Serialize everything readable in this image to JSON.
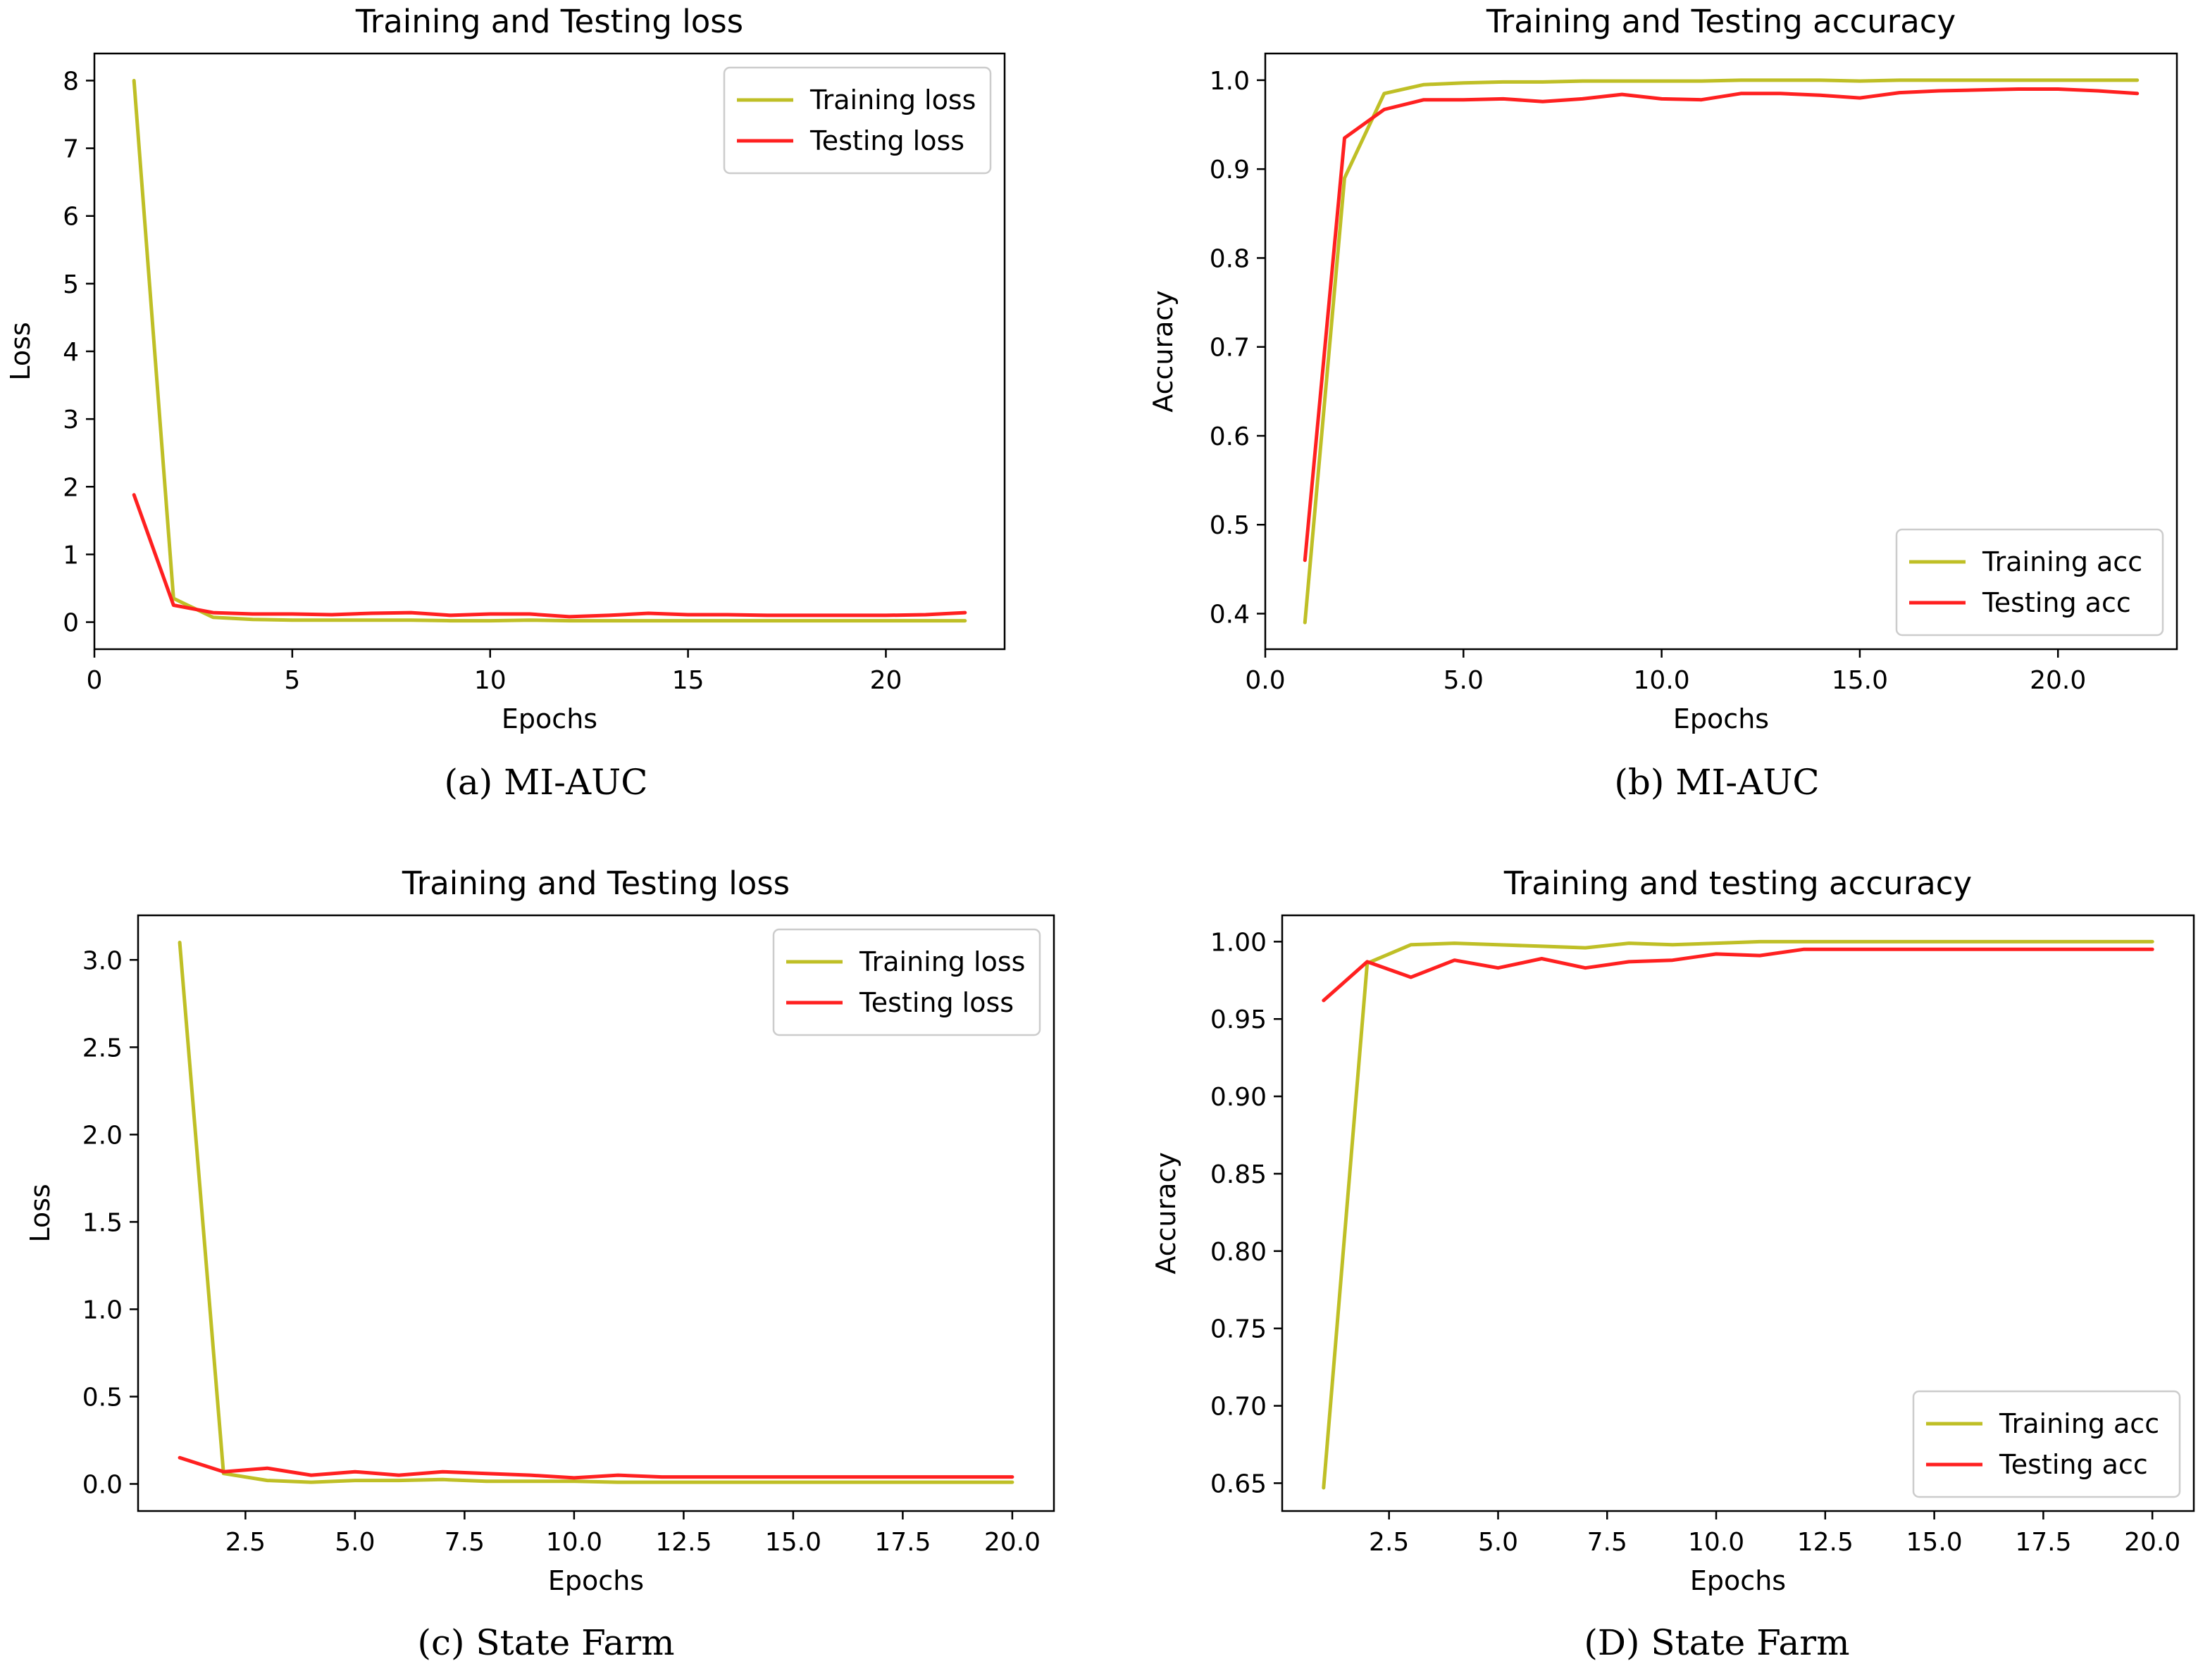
{
  "chart_data": [
    {
      "type": "line",
      "title": "Training and Testing loss",
      "xlabel": "Epochs",
      "ylabel": "Loss",
      "xlim": [
        0,
        23
      ],
      "ylim": [
        -0.4,
        8.4
      ],
      "xticks": [
        0,
        5,
        10,
        15,
        20
      ],
      "yticks": [
        0,
        1,
        2,
        3,
        4,
        5,
        6,
        7,
        8
      ],
      "tick_decimals": 0,
      "legend_position": "top-right",
      "caption": "(a) MI-AUC",
      "x": [
        1,
        2,
        3,
        4,
        5,
        6,
        7,
        8,
        9,
        10,
        11,
        12,
        13,
        14,
        15,
        16,
        17,
        18,
        19,
        20,
        21,
        22
      ],
      "series": [
        {
          "name": "Training loss",
          "color": "#bfbf26",
          "values": [
            8.0,
            0.35,
            0.07,
            0.04,
            0.03,
            0.03,
            0.03,
            0.03,
            0.02,
            0.02,
            0.03,
            0.02,
            0.02,
            0.02,
            0.02,
            0.02,
            0.02,
            0.02,
            0.02,
            0.02,
            0.02,
            0.02
          ]
        },
        {
          "name": "Testing loss",
          "color": "#ff2020",
          "values": [
            1.88,
            0.25,
            0.14,
            0.12,
            0.12,
            0.11,
            0.13,
            0.14,
            0.1,
            0.12,
            0.12,
            0.08,
            0.1,
            0.13,
            0.11,
            0.11,
            0.1,
            0.1,
            0.1,
            0.1,
            0.11,
            0.14
          ]
        }
      ]
    },
    {
      "type": "line",
      "title": "Training and Testing accuracy",
      "xlabel": "Epochs",
      "ylabel": "Accuracy",
      "xlim": [
        0,
        23
      ],
      "ylim": [
        0.36,
        1.03
      ],
      "xticks": [
        0,
        5,
        10,
        15,
        20
      ],
      "yticks": [
        0.4,
        0.5,
        0.6,
        0.7,
        0.8,
        0.9,
        1.0
      ],
      "tick_decimals": 1,
      "legend_position": "bottom-right",
      "caption": "(b) MI-AUC",
      "x": [
        1,
        2,
        3,
        4,
        5,
        6,
        7,
        8,
        9,
        10,
        11,
        12,
        13,
        14,
        15,
        16,
        17,
        18,
        19,
        20,
        21,
        22
      ],
      "series": [
        {
          "name": "Training acc",
          "color": "#bfbf26",
          "values": [
            0.39,
            0.89,
            0.985,
            0.995,
            0.997,
            0.998,
            0.998,
            0.999,
            0.999,
            0.999,
            0.999,
            1.0,
            1.0,
            1.0,
            0.999,
            1.0,
            1.0,
            1.0,
            1.0,
            1.0,
            1.0,
            1.0
          ]
        },
        {
          "name": "Testing acc",
          "color": "#ff2020",
          "values": [
            0.46,
            0.935,
            0.967,
            0.978,
            0.978,
            0.979,
            0.976,
            0.979,
            0.984,
            0.979,
            0.978,
            0.985,
            0.985,
            0.983,
            0.98,
            0.986,
            0.988,
            0.989,
            0.99,
            0.99,
            0.988,
            0.985
          ]
        }
      ]
    },
    {
      "type": "line",
      "title": "Training and Testing loss",
      "xlabel": "Epochs",
      "ylabel": "Loss",
      "xlim": [
        0.05,
        20.95
      ],
      "ylim": [
        -0.155,
        3.255
      ],
      "xticks": [
        2.5,
        5.0,
        7.5,
        10.0,
        12.5,
        15.0,
        17.5,
        20.0
      ],
      "yticks": [
        0.0,
        0.5,
        1.0,
        1.5,
        2.0,
        2.5,
        3.0
      ],
      "tick_decimals": 1,
      "legend_position": "top-right",
      "caption": "(c) State Farm",
      "x": [
        1,
        2,
        3,
        4,
        5,
        6,
        7,
        8,
        9,
        10,
        11,
        12,
        13,
        14,
        15,
        16,
        17,
        18,
        19,
        20
      ],
      "series": [
        {
          "name": "Training loss",
          "color": "#bfbf26",
          "values": [
            3.1,
            0.06,
            0.02,
            0.01,
            0.02,
            0.02,
            0.025,
            0.015,
            0.015,
            0.015,
            0.01,
            0.01,
            0.01,
            0.01,
            0.01,
            0.01,
            0.01,
            0.01,
            0.01,
            0.01
          ]
        },
        {
          "name": "Testing loss",
          "color": "#ff2020",
          "values": [
            0.15,
            0.07,
            0.09,
            0.05,
            0.07,
            0.05,
            0.07,
            0.06,
            0.05,
            0.035,
            0.05,
            0.04,
            0.04,
            0.04,
            0.04,
            0.04,
            0.04,
            0.04,
            0.04,
            0.04
          ]
        }
      ]
    },
    {
      "type": "line",
      "title": "Training and testing accuracy",
      "xlabel": "Epochs",
      "ylabel": "Accuracy",
      "xlim": [
        0.05,
        20.95
      ],
      "ylim": [
        0.632,
        1.017
      ],
      "xticks": [
        2.5,
        5.0,
        7.5,
        10.0,
        12.5,
        15.0,
        17.5,
        20.0
      ],
      "yticks": [
        0.65,
        0.7,
        0.75,
        0.8,
        0.85,
        0.9,
        0.95,
        1.0
      ],
      "tick_decimals": 2,
      "legend_position": "bottom-right",
      "caption": "(D) State Farm",
      "x": [
        1,
        2,
        3,
        4,
        5,
        6,
        7,
        8,
        9,
        10,
        11,
        12,
        13,
        14,
        15,
        16,
        17,
        18,
        19,
        20
      ],
      "series": [
        {
          "name": "Training acc",
          "color": "#bfbf26",
          "values": [
            0.647,
            0.986,
            0.998,
            0.999,
            0.998,
            0.997,
            0.996,
            0.999,
            0.998,
            0.999,
            1.0,
            1.0,
            1.0,
            1.0,
            1.0,
            1.0,
            1.0,
            1.0,
            1.0,
            1.0
          ]
        },
        {
          "name": "Testing acc",
          "color": "#ff2020",
          "values": [
            0.962,
            0.987,
            0.977,
            0.988,
            0.983,
            0.989,
            0.983,
            0.987,
            0.988,
            0.992,
            0.991,
            0.995,
            0.995,
            0.995,
            0.995,
            0.995,
            0.995,
            0.995,
            0.995,
            0.995
          ]
        }
      ]
    }
  ]
}
